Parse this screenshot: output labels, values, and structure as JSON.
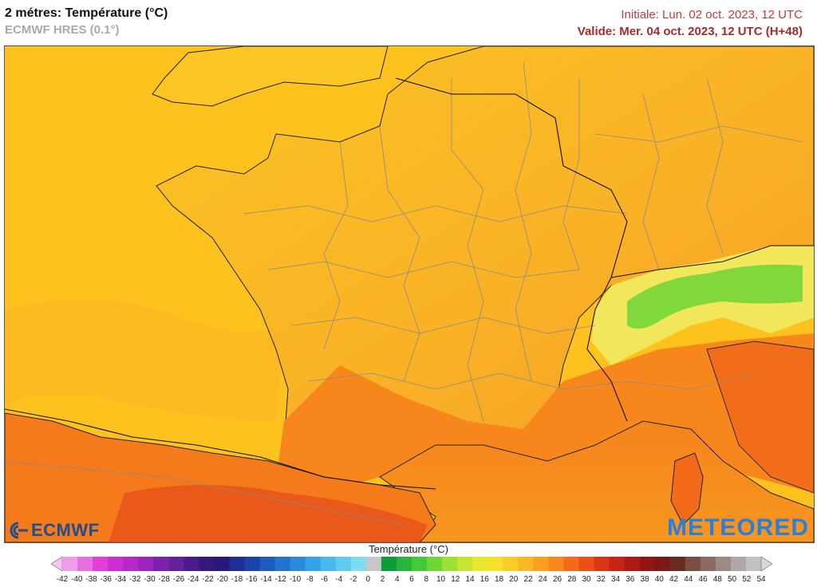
{
  "header": {
    "title": "2 métres: Température (°C)",
    "subtitle": "ECMWF HRES (0.1°)",
    "initiale": "Initiale: Lun. 02 oct. 2023, 12 UTC",
    "valide": "Valide: Mer. 04 oct. 2023, 12 UTC (H+48)"
  },
  "logos": {
    "ecmwf": "ECMWF",
    "meteored": "METEORED"
  },
  "legend": {
    "title": "Température (°C)",
    "ticks": [
      "-42",
      "-40",
      "-38",
      "-36",
      "-34",
      "-32",
      "-30",
      "-28",
      "-26",
      "-24",
      "-22",
      "-20",
      "-18",
      "-16",
      "-14",
      "-12",
      "-10",
      "-8",
      "-6",
      "-4",
      "-2",
      "0",
      "2",
      "4",
      "6",
      "8",
      "10",
      "12",
      "14",
      "16",
      "18",
      "20",
      "22",
      "24",
      "26",
      "28",
      "30",
      "32",
      "34",
      "36",
      "38",
      "40",
      "42",
      "44",
      "46",
      "48",
      "50",
      "52",
      "54"
    ],
    "colors": [
      "#f4c6f0",
      "#ee9ee8",
      "#e86fe0",
      "#e040d6",
      "#cc2fd0",
      "#b52ac7",
      "#9a27bd",
      "#7d22ad",
      "#63229c",
      "#4a1d8a",
      "#35197a",
      "#27197a",
      "#1f2e91",
      "#1c44a8",
      "#1e5cbe",
      "#2473cf",
      "#2c8ade",
      "#36a2e8",
      "#48b8ef",
      "#63cbf0",
      "#7fdcf0",
      "#c7c7c7",
      "#0d9c3a",
      "#28b43d",
      "#45c93b",
      "#6fd638",
      "#9ce036",
      "#c8e433",
      "#e8e62f",
      "#f5e12b",
      "#f8cd26",
      "#f9b823",
      "#f9a11f",
      "#f7881c",
      "#f36b1a",
      "#ea4f18",
      "#dc3516",
      "#c82414",
      "#b01a14",
      "#921714",
      "#7a1a16",
      "#6a2a22",
      "#7a4e44",
      "#8a6a62",
      "#9c8a86",
      "#b0a6a4",
      "#c4c0bf",
      "#d8d6d6"
    ]
  },
  "map": {
    "sea_atlantic_color": "#fdc21e",
    "sea_med_color": "#f7931e",
    "land_base_color": "#f9b226",
    "alps_color": "#5bd43a"
  }
}
